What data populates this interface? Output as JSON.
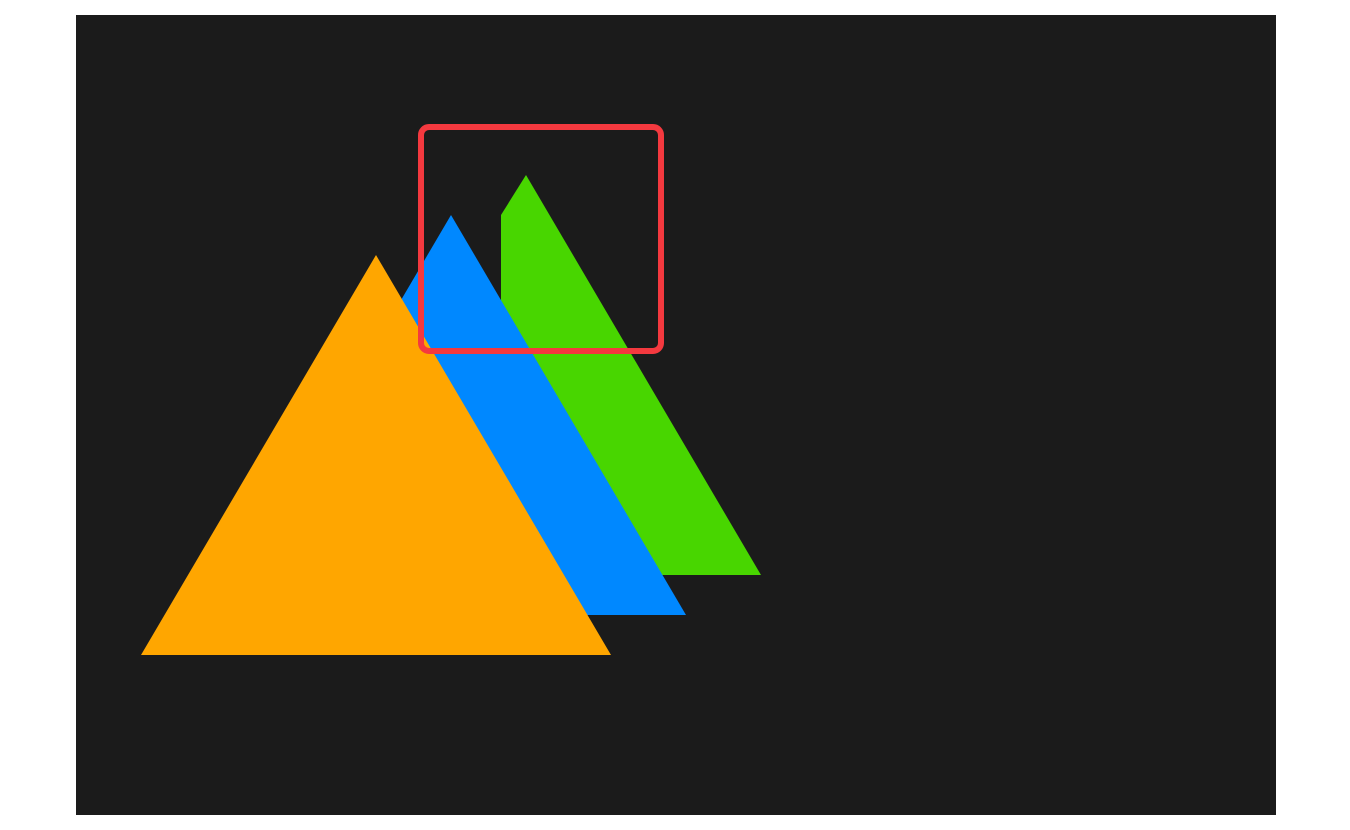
{
  "canvas": {
    "background_color": "#1b1b1b",
    "page_color": "#ffffff"
  },
  "shapes": [
    {
      "name": "green-triangle",
      "color": "#48d600",
      "icon": "triangle-icon"
    },
    {
      "name": "blue-triangle",
      "color": "#0088ff",
      "icon": "triangle-icon"
    },
    {
      "name": "orange-triangle",
      "color": "#ffa600",
      "icon": "triangle-icon"
    }
  ],
  "highlight": {
    "color": "#f4393f",
    "label": ""
  }
}
